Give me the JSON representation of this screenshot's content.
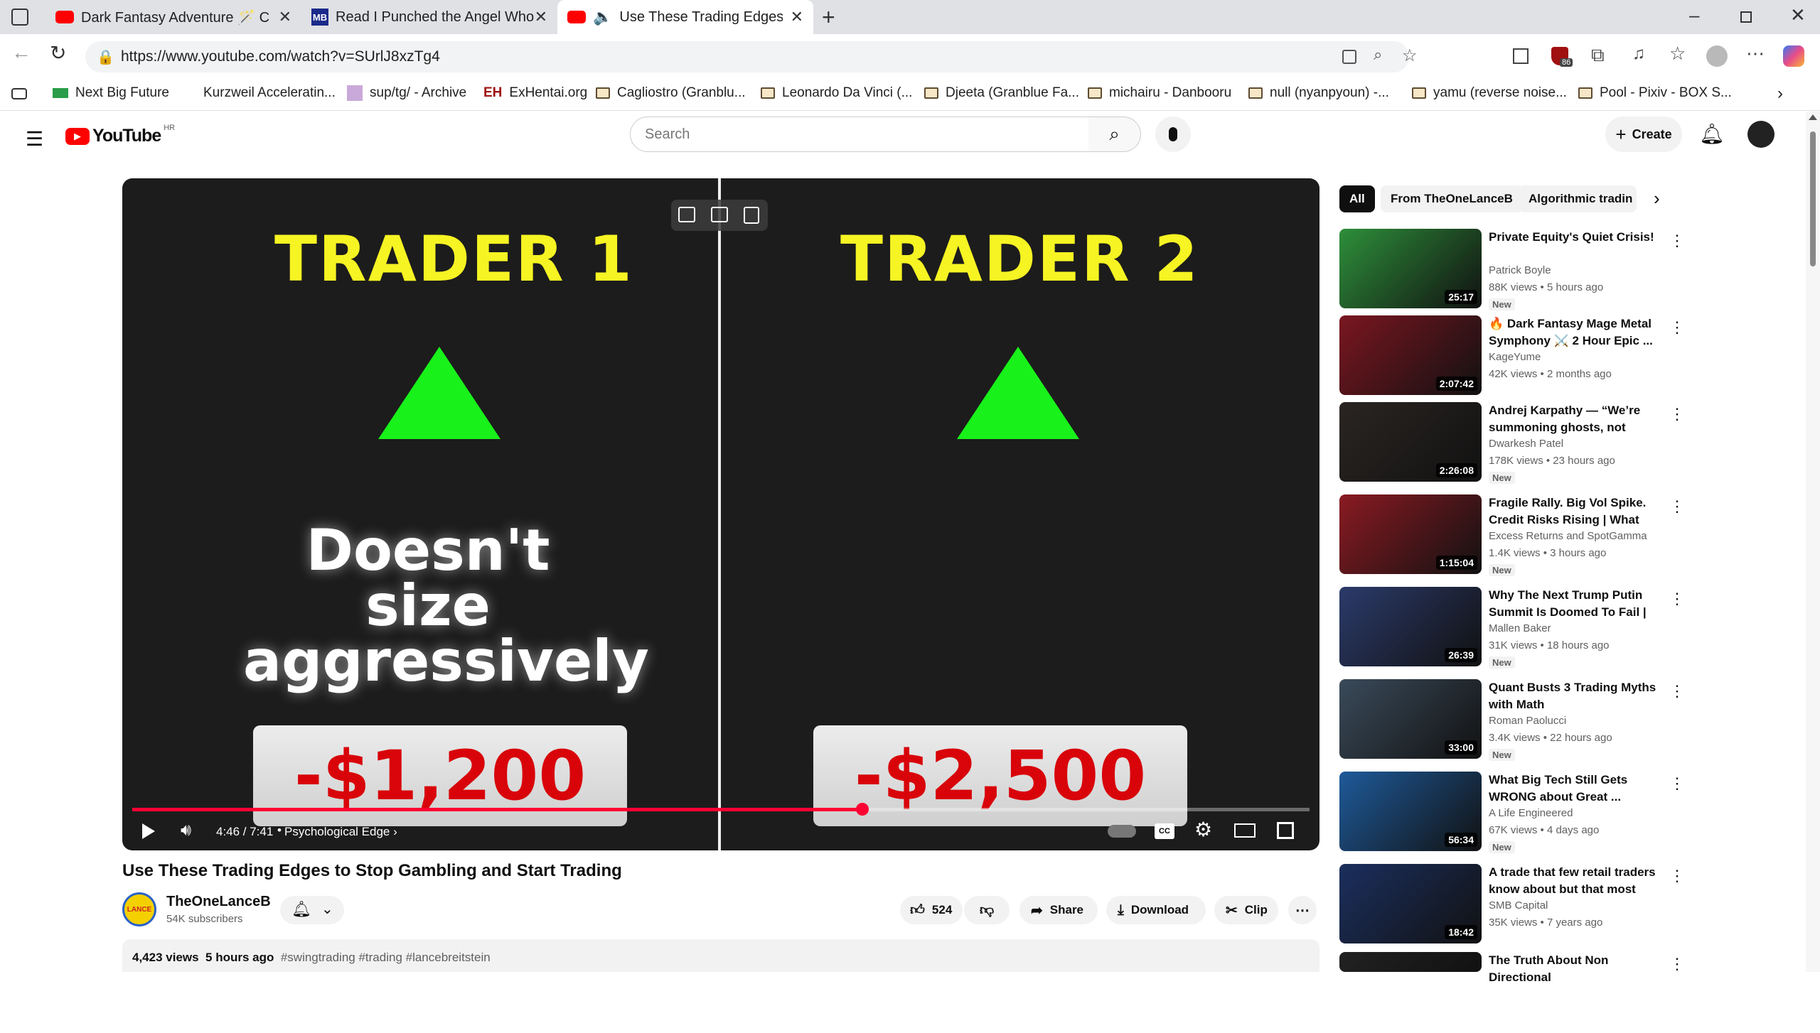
{
  "browser": {
    "tabs": [
      {
        "title": "Dark Fantasy Adventure 🪄 C",
        "favicon": "youtube-icon"
      },
      {
        "title": "Read I Punched the Angel Who W",
        "favicon": "mb-icon"
      },
      {
        "title": "Use These Trading Edges to",
        "favicon": "youtube-icon"
      }
    ],
    "url": "https://www.youtube.com/watch?v=SUrlJ8xzTg4",
    "extension_badge": "86",
    "bookmarks": [
      "Next Big Future",
      "Kurzweil Acceleratin...",
      "sup/tg/ - Archive",
      "ExHentai.org",
      "Cagliostro (Granblu...",
      "Leonardo Da Vinci (...",
      "Djeeta (Granblue Fa...",
      "michairu - Danbooru",
      "null (nyanpyoun) -...",
      "yamu (reverse noise...",
      "Pool - Pixiv - BOX S..."
    ]
  },
  "header": {
    "logo": "YouTube",
    "country": "HR",
    "search_placeholder": "Search",
    "create_label": "Create"
  },
  "video": {
    "left_header": "TRADER 1",
    "right_header": "TRADER 2",
    "caption_line1": "Doesn't size",
    "caption_line2": "aggressively",
    "left_value": "-$1,200",
    "right_value": "-$2,500",
    "time": "4:46 / 7:41",
    "chapter": "Psychological Edge",
    "progress": 0.62
  },
  "info": {
    "title": "Use These Trading Edges to Stop Gambling and Start Trading",
    "channel": "TheOneLanceB",
    "subscribers": "54K subscribers",
    "likes": "524",
    "share_label": "Share",
    "download_label": "Download",
    "clip_label": "Clip",
    "views": "4,423 views",
    "age": "5 hours ago",
    "tags": "#swingtrading #trading #lancebreitstein"
  },
  "chips": [
    "All",
    "From TheOneLanceB",
    "Algorithmic tradin"
  ],
  "recommendations": [
    {
      "title": "Private Equity's Quiet Crisis!",
      "channel": "Patrick Boyle",
      "meta": "88K views • 5 hours ago",
      "duration": "25:17",
      "new": "New",
      "color": "#2d8f3a"
    },
    {
      "title": "🔥 Dark Fantasy Mage Metal Symphony ⚔️ 2 Hour Epic ...",
      "channel": "KageYume",
      "meta": "42K views • 2 months ago",
      "duration": "2:07:42",
      "new": "",
      "color": "#7a1620"
    },
    {
      "title": "Andrej Karpathy — “We’re summoning ghosts, not buildi...",
      "channel": "Dwarkesh Patel",
      "meta": "178K views • 23 hours ago",
      "duration": "2:26:08",
      "new": "New",
      "color": "#2a2522"
    },
    {
      "title": "Fragile Rally. Big Vol Spike. Credit Risks Rising | What the ...",
      "channel": "Excess Returns and SpotGamma",
      "meta": "1.4K views • 3 hours ago",
      "duration": "1:15:04",
      "new": "New",
      "color": "#8a1a22"
    },
    {
      "title": "Why The Next Trump Putin Summit Is Doomed To Fail | ...",
      "channel": "Mallen Baker",
      "meta": "31K views • 18 hours ago",
      "duration": "26:39",
      "new": "New",
      "color": "#2b3a6a"
    },
    {
      "title": "Quant Busts 3 Trading Myths with Math",
      "channel": "Roman Paolucci",
      "meta": "3.4K views • 22 hours ago",
      "duration": "33:00",
      "new": "New",
      "color": "#3a4a5a"
    },
    {
      "title": "What Big Tech Still Gets WRONG about Great ...",
      "channel": "A Life Engineered",
      "meta": "67K views • 4 days ago",
      "duration": "56:34",
      "new": "New",
      "color": "#1e5a9a"
    },
    {
      "title": "A trade that few retail traders know about but that most pros...",
      "channel": "SMB Capital",
      "meta": "35K views • 7 years ago",
      "duration": "18:42",
      "new": "",
      "color": "#1b2f5e"
    },
    {
      "title": "The Truth About Non Directional",
      "channel": "",
      "meta": "",
      "duration": "",
      "new": "",
      "color": "#222"
    }
  ]
}
